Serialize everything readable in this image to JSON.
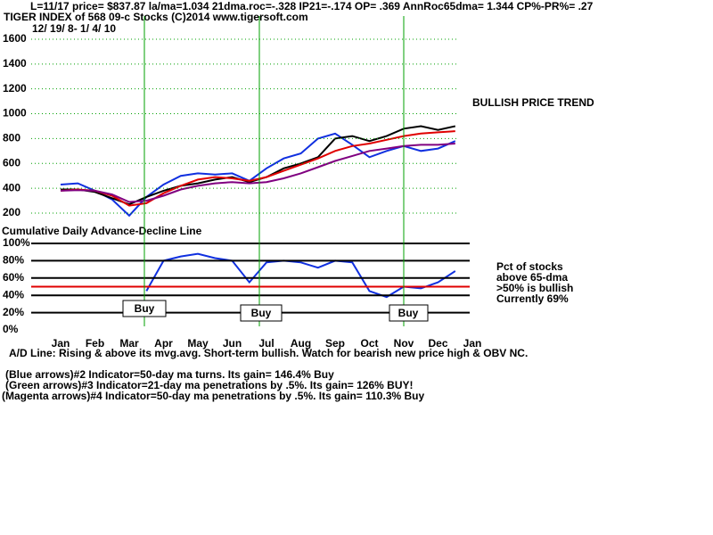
{
  "header": "L=11/17  price= $837.87  la/ma=1.034 21dma.roc=-.328 IP21=-.174 OP= .369 AnnRoc65dma= 1.344 CP%-PR%=  .27",
  "notes": [
    "A/D Line: Rising & above its mvg.avg. Short-term bullish. Watch for bearish new price high & OBV NC.",
    "(Blue arrows)#2 Indicator=50-day ma turns. Its gain= 146.4% Buy",
    "(Green arrows)#3 Indicator=21-day ma penetrations by .5%. Its gain= 126% BUY!",
    "(Magenta arrows)#4 Indicator=50-day ma penetrations by .5%. Its gain= 110.3% Buy"
  ],
  "chart_data": [
    {
      "type": "line",
      "title": "TIGER INDEX of  568 09-c Stocks  (C)2014  www.tigersoft.com",
      "subtitle": "12/ 19/ 8- 1/ 4/ 10",
      "annotations": [
        "BULLISH PRICE TREND"
      ],
      "ylim": [
        200,
        1660
      ],
      "yticks": [
        200,
        400,
        600,
        800,
        1000,
        1200,
        1400,
        1600
      ],
      "grid": true,
      "series": [
        {
          "name": "Purple MA",
          "color": "#800080",
          "values": [
            380,
            385,
            380,
            350,
            290,
            300,
            340,
            390,
            420,
            440,
            450,
            440,
            450,
            480,
            520,
            570,
            620,
            660,
            700,
            720,
            740,
            750,
            750,
            760,
            null
          ]
        },
        {
          "name": "Red MA",
          "color": "#e00000",
          "values": [
            380,
            390,
            380,
            340,
            260,
            280,
            360,
            420,
            470,
            490,
            480,
            460,
            490,
            540,
            590,
            640,
            700,
            740,
            760,
            790,
            820,
            840,
            850,
            860,
            null
          ]
        },
        {
          "name": "Price",
          "color": "#000000",
          "values": [
            390,
            390,
            370,
            320,
            270,
            330,
            380,
            420,
            440,
            470,
            490,
            450,
            490,
            560,
            600,
            650,
            800,
            820,
            780,
            820,
            880,
            900,
            870,
            900,
            null
          ]
        },
        {
          "name": "OBV",
          "color": "#1030e0",
          "values": [
            430,
            440,
            380,
            310,
            180,
            330,
            430,
            500,
            520,
            510,
            520,
            460,
            560,
            640,
            680,
            800,
            840,
            750,
            650,
            700,
            740,
            700,
            720,
            780,
            null
          ]
        }
      ]
    },
    {
      "type": "line",
      "title": "Cumulative Daily Advance-Decline Line",
      "annotations": [
        "Buy",
        "Buy",
        "Buy",
        "Pct of stocks",
        "above 65-dma",
        ">50% is bullish",
        "Currently  69%"
      ],
      "categories": [
        "Jan",
        null,
        "Feb",
        null,
        "Mar",
        null,
        "Apr",
        null,
        "May",
        null,
        "Jun",
        null,
        "Jul",
        null,
        "Aug",
        null,
        "Sep",
        null,
        "Oct",
        null,
        "Nov",
        null,
        "Dec",
        null,
        "Jan"
      ],
      "ylim": [
        0,
        100
      ],
      "yticks": [
        {
          "value": 0,
          "label": "0%"
        },
        {
          "value": 20,
          "label": "20%"
        },
        {
          "value": 40,
          "label": "40%"
        },
        {
          "value": 60,
          "label": "60%"
        },
        {
          "value": 80,
          "label": "80%"
        },
        {
          "value": 100,
          "label": "100%"
        }
      ],
      "reference_line": {
        "value": 50,
        "color": "#e00000"
      },
      "series": [
        {
          "name": "Pct of stocks above 65-dma",
          "color": "#1030e0",
          "values": [
            null,
            null,
            null,
            null,
            null,
            45,
            80,
            85,
            88,
            83,
            80,
            55,
            78,
            80,
            78,
            72,
            80,
            78,
            45,
            38,
            50,
            48,
            55,
            68,
            null
          ]
        }
      ]
    }
  ]
}
